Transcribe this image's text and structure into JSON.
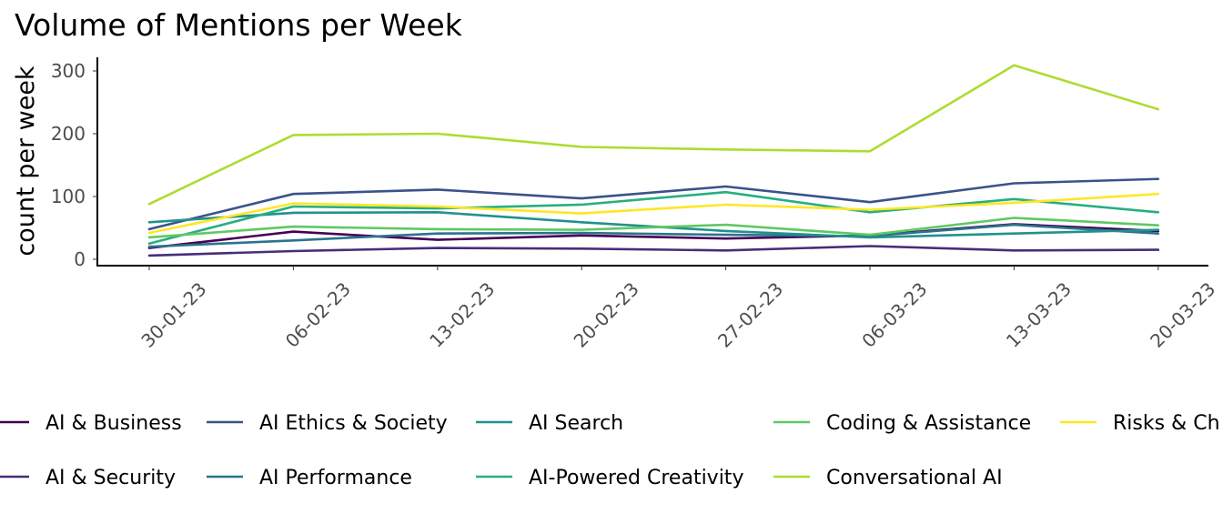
{
  "chart_data": {
    "type": "line",
    "title": "Volume of Mentions per Week",
    "xlabel": "",
    "ylabel": "count per week",
    "x": [
      "30-01-23",
      "06-02-23",
      "13-02-23",
      "20-02-23",
      "27-02-23",
      "06-03-23",
      "13-03-23",
      "20-03-23"
    ],
    "ylim": [
      0,
      320
    ],
    "yticks": [
      0,
      100,
      200,
      300
    ],
    "grid": false,
    "legend_position": "bottom",
    "series": [
      {
        "name": "AI & Business",
        "color": "#440154",
        "values": [
          18,
          44,
          31,
          38,
          33,
          38,
          56,
          45
        ]
      },
      {
        "name": "AI & Security",
        "color": "#472d7b",
        "values": [
          6,
          13,
          18,
          17,
          14,
          21,
          14,
          15
        ]
      },
      {
        "name": "AI Ethics & Society",
        "color": "#3b528b",
        "values": [
          48,
          104,
          111,
          97,
          116,
          91,
          121,
          128
        ]
      },
      {
        "name": "AI Performance",
        "color": "#2c728e",
        "values": [
          20,
          30,
          41,
          42,
          39,
          37,
          55,
          41
        ]
      },
      {
        "name": "AI Search",
        "color": "#21918c",
        "values": [
          59,
          74,
          75,
          59,
          45,
          35,
          41,
          47
        ]
      },
      {
        "name": "AI-Powered Creativity",
        "color": "#28ae80",
        "values": [
          25,
          84,
          81,
          87,
          107,
          75,
          96,
          75
        ]
      },
      {
        "name": "Coding & Assistance",
        "color": "#5ec962",
        "values": [
          35,
          52,
          48,
          47,
          55,
          39,
          66,
          54
        ]
      },
      {
        "name": "Conversational AI",
        "color": "#addc30",
        "values": [
          88,
          198,
          200,
          179,
          175,
          172,
          309,
          239
        ]
      },
      {
        "name": "Risks & Ch",
        "color": "#fde725",
        "values": [
          42,
          89,
          84,
          73,
          87,
          79,
          90,
          104
        ]
      }
    ],
    "legend_layout": [
      [
        "AI & Business",
        "AI Ethics & Society",
        "AI Search",
        "Coding & Assistance",
        "Risks & Ch"
      ],
      [
        "AI & Security",
        "AI Performance",
        "AI-Powered Creativity",
        "Conversational AI"
      ]
    ]
  }
}
